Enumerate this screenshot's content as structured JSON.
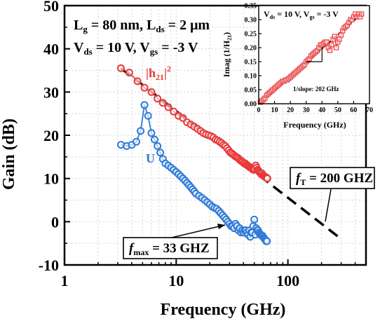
{
  "chart_data": [
    {
      "type": "scatter",
      "xlabel": "Frequency (GHz)",
      "ylabel": "Gain (dB)",
      "xscale": "log",
      "xlim": [
        1,
        500
      ],
      "ylim": [
        -10,
        50
      ],
      "x_ticks": [
        1,
        10,
        100
      ],
      "x_tick_labels": [
        "1",
        "10",
        "100"
      ],
      "y_ticks": [
        -10,
        0,
        10,
        20,
        30,
        40,
        50
      ],
      "y_tick_labels": [
        "-10",
        "0",
        "10",
        "20",
        "30",
        "40",
        "50"
      ],
      "grid": true,
      "annotations": {
        "params_line1": "L_g = 80 nm, L_ds = 2 μm",
        "params_line2": "V_ds = 10 V, V_gs = -3 V",
        "h21_label": "|h21|²",
        "u_label": "U",
        "ft_label": "fT = 200 GHZ",
        "fmax_label": "fmax = 33 GHZ"
      },
      "series": [
        {
          "name": "|h21|²",
          "color": "#e8393a",
          "marker": "circle",
          "x": [
            3.2,
            3.8,
            4.5,
            5.2,
            6.0,
            6.8,
            7.6,
            8.5,
            9.5,
            10.5,
            11.5,
            12.5,
            13.5,
            14.5,
            15.5,
            16.5,
            17.5,
            18.5,
            19.5,
            20.5,
            21.5,
            22.5,
            23.5,
            24.5,
            25.5,
            26.5,
            27.5,
            28.5,
            29.5,
            30.5,
            31.5,
            32.5,
            33.5,
            34.5,
            35.5,
            36.5,
            37.5,
            38.5,
            39.5,
            40.5,
            41.5,
            42.5,
            43.5,
            44.5,
            45.5,
            46.5,
            47.5,
            48.5,
            49.5,
            50.5,
            51.5,
            52.5,
            53.5,
            54.5,
            55.5,
            56.5,
            57.5,
            58.5,
            59.5,
            60.5,
            61.5,
            62.5,
            63.5,
            64.5,
            65.5
          ],
          "y": [
            35.5,
            34.5,
            32.5,
            31.0,
            30.0,
            28.5,
            27.5,
            26.5,
            25.5,
            24.5,
            24.0,
            23.0,
            22.5,
            22.0,
            21.5,
            21.0,
            20.5,
            20.2,
            20.0,
            19.8,
            19.5,
            19.0,
            18.8,
            18.5,
            18.2,
            17.8,
            17.5,
            17.0,
            16.5,
            16.0,
            15.8,
            15.5,
            15.2,
            15.0,
            14.8,
            14.5,
            14.2,
            14.0,
            13.8,
            13.5,
            13.5,
            13.2,
            13.0,
            12.8,
            12.6,
            12.5,
            12.3,
            12.1,
            12.0,
            12.3,
            13.0,
            12.5,
            12.0,
            11.8,
            11.5,
            11.3,
            11.0,
            11.2,
            10.8,
            10.6,
            10.5,
            10.4,
            10.3,
            10.2,
            10.0
          ]
        },
        {
          "name": "U",
          "color": "#2f7ad8",
          "marker": "circle",
          "x": [
            3.2,
            3.6,
            4.0,
            4.4,
            4.8,
            5.2,
            5.6,
            6.0,
            6.4,
            6.8,
            7.2,
            7.6,
            8.0,
            8.5,
            9.0,
            9.5,
            10.0,
            10.5,
            11.0,
            11.5,
            12.0,
            12.5,
            13.0,
            13.5,
            14.0,
            14.5,
            15.0,
            16.0,
            17.0,
            18.0,
            19.0,
            20.0,
            21.0,
            22.0,
            23.0,
            24.0,
            25.0,
            26.0,
            27.0,
            28.0,
            29.0,
            30.0,
            31.0,
            32.0,
            33.0,
            34.0,
            35.0,
            36.0,
            37.0,
            38.0,
            39.0,
            40.0,
            41.0,
            42.0,
            43.0,
            44.0,
            45.0,
            46.0,
            47.0,
            48.0,
            49.0,
            50.0,
            51.0,
            52.0,
            53.0,
            54.0,
            55.0,
            56.0,
            57.0,
            58.0,
            59.0,
            60.0,
            61.0,
            62.0,
            63.0,
            64.0,
            65.0
          ],
          "y": [
            17.8,
            17.5,
            17.8,
            18.5,
            21.0,
            27.0,
            24.5,
            20.5,
            19.0,
            17.5,
            16.0,
            14.5,
            13.5,
            13.0,
            12.5,
            12.0,
            11.5,
            11.0,
            10.5,
            10.0,
            9.5,
            9.0,
            8.5,
            8.0,
            7.5,
            7.0,
            6.5,
            6.0,
            5.5,
            5.0,
            4.5,
            4.0,
            3.5,
            3.2,
            3.0,
            2.5,
            2.0,
            1.5,
            1.0,
            0.5,
            0.0,
            -0.5,
            -1.0,
            -1.0,
            -1.5,
            -0.5,
            -1.0,
            -2.0,
            -1.5,
            -2.5,
            -2.0,
            -2.5,
            -2.0,
            -2.0,
            -2.5,
            -3.0,
            -2.0,
            -3.5,
            -2.5,
            -2.5,
            -1.0,
            0.5,
            -3.0,
            -1.5,
            -2.0,
            -2.0,
            -2.5,
            -2.8,
            -3.0,
            -3.2,
            -3.2,
            -3.5,
            -3.8,
            -4.0,
            -4.2,
            -4.5,
            -4.5
          ]
        }
      ],
      "fit_line": {
        "x": [
          3.2,
          300
        ],
        "y": [
          35.5,
          -4.0
        ],
        "style": "dashed"
      }
    },
    {
      "type": "scatter",
      "xlabel": "Frequency (GHz)",
      "ylabel": "Imag (1/H21)",
      "xlim": [
        0,
        70
      ],
      "ylim": [
        0,
        0.35
      ],
      "x_ticks": [
        0,
        10,
        20,
        30,
        40,
        50,
        60,
        70
      ],
      "x_tick_labels": [
        "0",
        "10",
        "20",
        "30",
        "40",
        "50",
        "60",
        "70"
      ],
      "y_ticks": [
        0.0,
        0.05,
        0.1,
        0.15,
        0.2,
        0.25,
        0.3,
        0.35
      ],
      "y_tick_labels": [
        "0.00",
        "0.05",
        "0.10",
        "0.15",
        "0.20",
        "0.25",
        "0.30",
        "0.35"
      ],
      "annotations": {
        "bias_label": "V_ds = 10 V, V_gs = -3 V",
        "slope_label": "1/slope: 202 GHz"
      },
      "series": [
        {
          "name": "Imag(1/H21)",
          "color": "#e8393a",
          "marker": "square",
          "x": [
            1,
            2,
            3,
            4,
            5,
            6,
            7,
            8,
            9,
            10,
            11,
            12,
            13,
            14,
            15,
            16,
            17,
            18,
            19,
            20,
            21,
            22,
            23,
            24,
            25,
            26,
            27,
            28,
            29,
            30,
            31,
            32,
            33,
            34,
            35,
            36,
            37,
            38,
            39,
            40,
            41,
            42,
            43,
            44,
            45,
            46,
            47,
            48,
            49,
            50,
            51,
            52,
            53,
            54,
            55,
            56,
            57,
            58,
            59,
            60,
            61,
            62,
            63,
            64,
            65
          ],
          "y": [
            0.005,
            0.01,
            0.015,
            0.02,
            0.03,
            0.035,
            0.04,
            0.045,
            0.05,
            0.055,
            0.06,
            0.065,
            0.07,
            0.075,
            0.08,
            0.08,
            0.085,
            0.085,
            0.09,
            0.095,
            0.1,
            0.105,
            0.11,
            0.115,
            0.12,
            0.125,
            0.13,
            0.135,
            0.14,
            0.15,
            0.155,
            0.16,
            0.17,
            0.175,
            0.18,
            0.185,
            0.19,
            0.2,
            0.21,
            0.21,
            0.215,
            0.22,
            0.22,
            0.2,
            0.19,
            0.21,
            0.23,
            0.24,
            0.2,
            0.22,
            0.23,
            0.245,
            0.26,
            0.27,
            0.275,
            0.28,
            0.29,
            0.3,
            0.3,
            0.31,
            0.32,
            0.31,
            0.32,
            0.31,
            0.32
          ]
        }
      ],
      "fit_line": {
        "x": [
          0,
          66
        ],
        "y": [
          0,
          0.325
        ],
        "style": "dashed"
      },
      "slope_triangle": {
        "x": [
          30,
          40
        ],
        "y": [
          0.15,
          0.2
        ]
      }
    }
  ]
}
